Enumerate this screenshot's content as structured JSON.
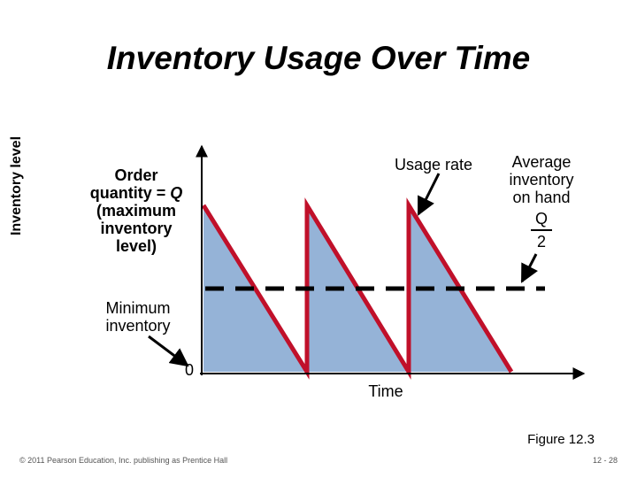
{
  "title": "Inventory Usage Over Time",
  "y_axis_label": "Inventory level",
  "x_axis_label": "Time",
  "zero_label": "0",
  "annotations": {
    "order_line1": "Order",
    "order_line2": "quantity = Q",
    "order_line3": "(maximum",
    "order_line4": "inventory",
    "order_line5": "level)",
    "usage_rate": "Usage rate",
    "avg_line1": "Average",
    "avg_line2": "inventory",
    "avg_line3": "on hand",
    "avg_numerator": "Q",
    "avg_denominator": "2",
    "min_line1": "Minimum",
    "min_line2": "inventory"
  },
  "figure_label": "Figure 12.3",
  "footer": {
    "copyright": "© 2011 Pearson Education, Inc. publishing as Prentice Hall",
    "page": "12 - 28"
  },
  "colors": {
    "fill": "#95b3d7",
    "sawtooth": "#c0102a",
    "axis": "#000000"
  }
}
